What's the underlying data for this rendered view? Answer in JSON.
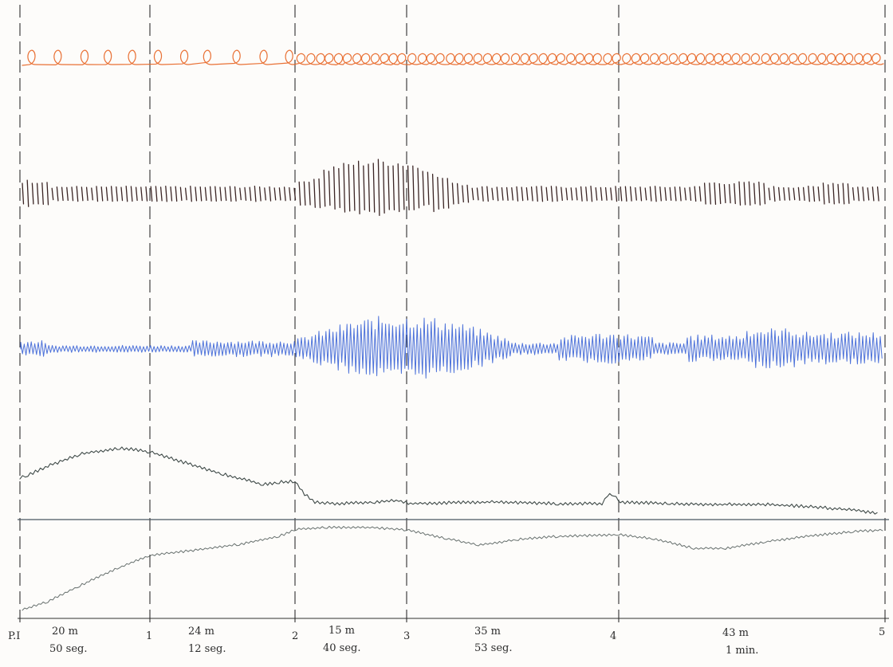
{
  "stations": [
    {
      "label": "P.I"
    },
    {
      "label": "1"
    },
    {
      "label": "2"
    },
    {
      "label": "3"
    },
    {
      "label": "4"
    },
    {
      "label": "5"
    }
  ],
  "segments": [
    {
      "distance": "20 m",
      "time": "50 seg."
    },
    {
      "distance": "24 m",
      "time": "12 seg."
    },
    {
      "distance": "15 m",
      "time": "40 seg."
    },
    {
      "distance": "35 m",
      "time": "53 seg."
    },
    {
      "distance": "43 m",
      "time": "1 min."
    }
  ],
  "traces": [
    {
      "id": "orange-loops",
      "color": "#e8692a"
    },
    {
      "id": "brown-ticks",
      "color": "#3a2424"
    },
    {
      "id": "blue-scribble",
      "color": "#3a63d6"
    },
    {
      "id": "grey-upper",
      "color": "#3f4a48"
    },
    {
      "id": "grey-lower",
      "color": "#4d5856"
    }
  ],
  "colors": {
    "paper": "#fdfcfa",
    "guides": "#2f2f2f",
    "baseline": "#4a5560"
  }
}
